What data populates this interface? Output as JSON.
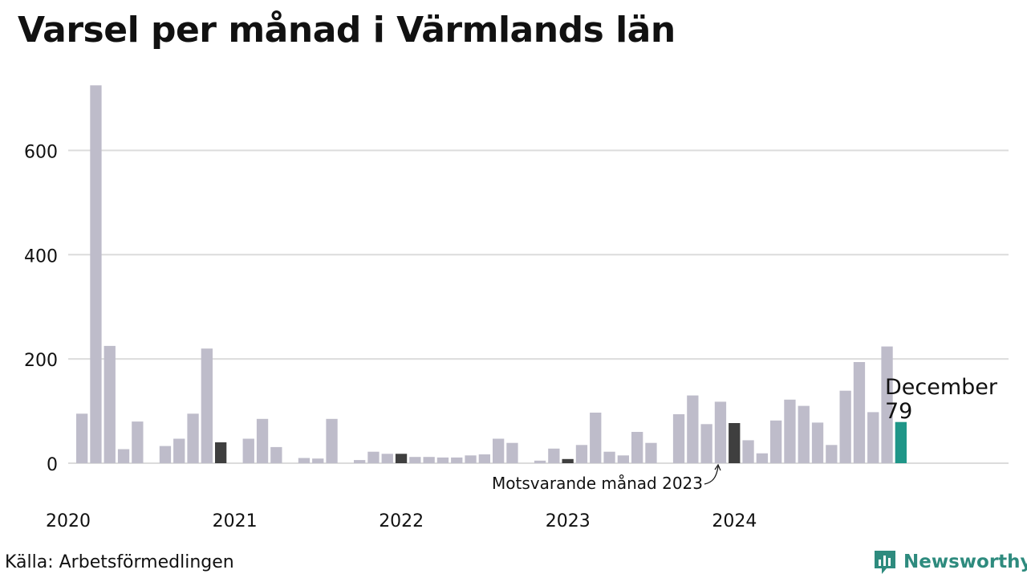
{
  "title": "Varsel per månad i Värmlands län",
  "source": "Källa: Arbetsförmedlingen",
  "logo_text": "Newsworthy",
  "colors": {
    "bar": "#bebcca",
    "same_month": "#3f3f3f",
    "latest": "#1f9688",
    "grid": "#dcdcdc",
    "logo": "#2e8b7e"
  },
  "highlight": {
    "label_month": "December",
    "label_value": "79",
    "annotation": "Motsvarande månad 2023"
  },
  "chart_data": {
    "type": "bar",
    "title": "Varsel per månad i Värmlands län",
    "ylim": [
      0,
      730
    ],
    "y_ticks": [
      0,
      200,
      400,
      600
    ],
    "x_tick_labels": [
      "2020",
      "2021",
      "2022",
      "2023",
      "2024"
    ],
    "grid": true,
    "series": [
      {
        "values": [
          95,
          725,
          225,
          27,
          80,
          0,
          33,
          47,
          95,
          220,
          40,
          0,
          47,
          85,
          31,
          0,
          10,
          9,
          85,
          0,
          6,
          22,
          18,
          18,
          12,
          12,
          11,
          11,
          15,
          17,
          47,
          39,
          0,
          5,
          28,
          8,
          35,
          97,
          22,
          15,
          60,
          39,
          0,
          94,
          130,
          75,
          118,
          77,
          44,
          19,
          82,
          122,
          110,
          78,
          35,
          139,
          194,
          98,
          224,
          79
        ]
      }
    ],
    "same_month_indices": [
      10,
      23,
      35,
      47
    ],
    "latest_index": 59
  }
}
